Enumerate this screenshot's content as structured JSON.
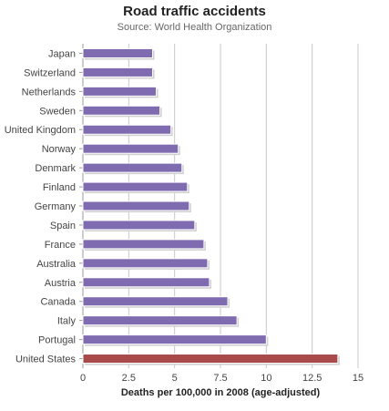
{
  "chart_data": {
    "type": "bar",
    "orientation": "horizontal",
    "title": "Road traffic accidents",
    "subtitle": "Source: World Health Organization",
    "xlabel": "Deaths per 100,000 in 2008 (age-adjusted)",
    "ylabel": "",
    "xlim": [
      0,
      15
    ],
    "xticks": [
      0,
      2.5,
      5,
      7.5,
      10,
      12.5,
      15
    ],
    "xtick_labels": [
      "0",
      "2.5",
      "5",
      "7.5",
      "10",
      "12.5",
      "15"
    ],
    "grid": true,
    "categories": [
      "Japan",
      "Switzerland",
      "Netherlands",
      "Sweden",
      "United Kingdom",
      "Norway",
      "Denmark",
      "Finland",
      "Germany",
      "Spain",
      "France",
      "Australia",
      "Austria",
      "Canada",
      "Italy",
      "Portugal",
      "United States"
    ],
    "values": [
      3.8,
      3.8,
      4.0,
      4.2,
      4.8,
      5.2,
      5.4,
      5.7,
      5.8,
      6.1,
      6.6,
      6.8,
      6.9,
      7.9,
      8.4,
      10.0,
      13.9
    ],
    "highlight": "United States",
    "colors": {
      "bar": "#7f6bb0",
      "highlight": "#a84a4a",
      "grid": "#c8c8c8",
      "axis": "#999999",
      "shadow": "#cfcfcf"
    }
  }
}
